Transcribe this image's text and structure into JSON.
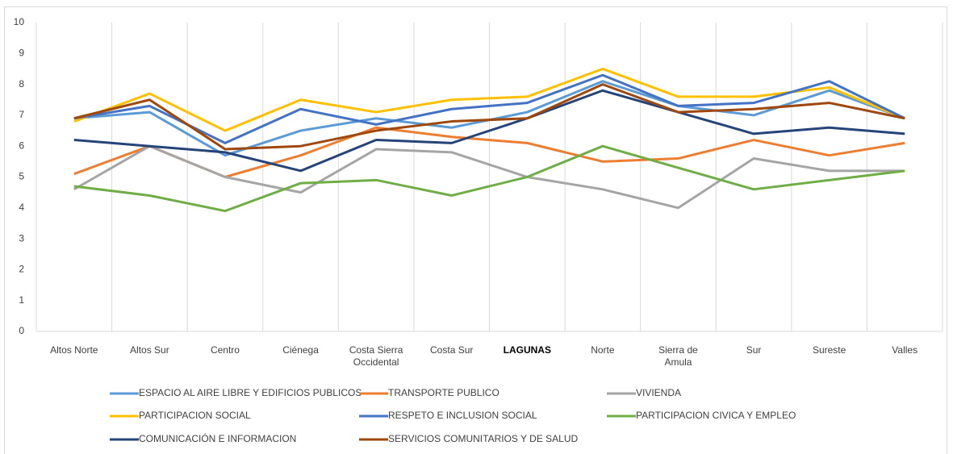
{
  "chart_data": {
    "type": "line",
    "categories": [
      "Altos Norte",
      "Altos Sur",
      "Centro",
      "Ciénega",
      "Costa Sierra Occidental",
      "Costa Sur",
      "LAGUNAS",
      "Norte",
      "Sierra de Amula",
      "Sur",
      "Sureste",
      "Valles"
    ],
    "series": [
      {
        "name": "ESPACIO AL AIRE LIBRE Y EDIFICIOS PUBLICOS",
        "color": "#5b9bd5",
        "values": [
          6.9,
          7.1,
          5.7,
          6.5,
          6.9,
          6.6,
          7.1,
          8.1,
          7.3,
          7.0,
          7.8,
          6.9
        ]
      },
      {
        "name": "TRANSPORTE PUBLICO",
        "color": "#ed7d31",
        "values": [
          5.1,
          6.0,
          5.0,
          5.7,
          6.6,
          6.3,
          6.1,
          5.5,
          5.6,
          6.2,
          5.7,
          6.1
        ]
      },
      {
        "name": "VIVIENDA",
        "color": "#a5a5a5",
        "values": [
          4.6,
          6.0,
          5.0,
          4.5,
          5.9,
          5.8,
          5.0,
          4.6,
          4.0,
          5.6,
          5.2,
          5.2
        ]
      },
      {
        "name": "PARTICIPACION SOCIAL",
        "color": "#ffc000",
        "values": [
          6.8,
          7.7,
          6.5,
          7.5,
          7.1,
          7.5,
          7.6,
          8.5,
          7.6,
          7.6,
          7.9,
          6.9
        ]
      },
      {
        "name": "RESPETO E INCLUSION SOCIAL",
        "color": "#4472c4",
        "values": [
          6.9,
          7.3,
          6.1,
          7.2,
          6.7,
          7.2,
          7.4,
          8.3,
          7.3,
          7.4,
          8.1,
          6.9
        ]
      },
      {
        "name": "PARTICIPACION CIVICA Y EMPLEO",
        "color": "#70ad47",
        "values": [
          4.7,
          4.4,
          3.9,
          4.8,
          4.9,
          4.4,
          5.0,
          6.0,
          5.3,
          4.6,
          4.9,
          5.2
        ]
      },
      {
        "name": "COMUNICACIÓN E INFORMACION",
        "color": "#264478",
        "values": [
          6.2,
          6.0,
          5.8,
          5.2,
          6.2,
          6.1,
          6.9,
          7.8,
          7.1,
          6.4,
          6.6,
          6.4
        ]
      },
      {
        "name": "SERVICIOS COMUNITARIOS Y DE SALUD",
        "color": "#9e480e",
        "values": [
          6.9,
          7.5,
          5.9,
          6.0,
          6.5,
          6.8,
          6.9,
          8.0,
          7.1,
          7.2,
          7.4,
          6.9
        ]
      }
    ],
    "ylim": [
      0,
      10
    ],
    "yticks": [
      0,
      1,
      2,
      3,
      4,
      5,
      6,
      7,
      8,
      9,
      10
    ],
    "grid": true
  }
}
